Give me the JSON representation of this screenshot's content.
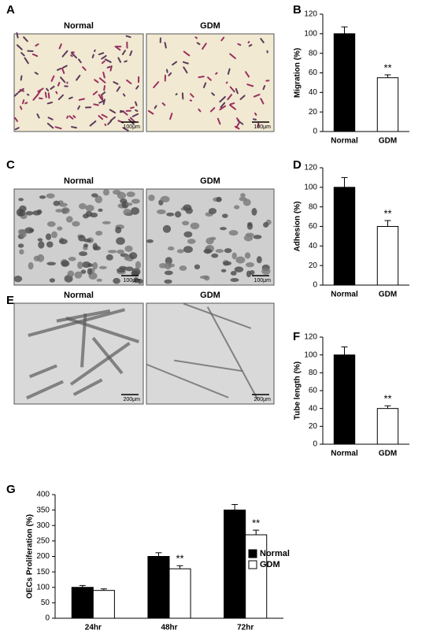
{
  "image_panels": [
    {
      "label": "A",
      "images": [
        {
          "title": "Normal",
          "scale": "100μm"
        },
        {
          "title": "GDM",
          "scale": "100μm"
        }
      ]
    },
    {
      "label": "C",
      "images": [
        {
          "title": "Normal",
          "scale": "100μm"
        },
        {
          "title": "GDM",
          "scale": "100μm"
        }
      ]
    },
    {
      "label": "E",
      "images": [
        {
          "title": "Normal",
          "scale": "200μm"
        },
        {
          "title": "GDM",
          "scale": "200μm"
        }
      ]
    }
  ],
  "chart_data": [
    {
      "type": "bar",
      "panel_label": "B",
      "y_label": "Migration (%)",
      "categories": [
        "Normal",
        "GDM"
      ],
      "values": [
        100,
        55
      ],
      "errors": [
        7,
        3
      ],
      "colors": [
        "#000000",
        "#ffffff"
      ],
      "significance": [
        null,
        "**"
      ],
      "ylim": [
        0,
        120
      ],
      "yticks": [
        0,
        20,
        40,
        60,
        80,
        100,
        120
      ]
    },
    {
      "type": "bar",
      "panel_label": "D",
      "y_label": "Adhesion (%)",
      "categories": [
        "Normal",
        "GDM"
      ],
      "values": [
        100,
        60
      ],
      "errors": [
        10,
        6
      ],
      "colors": [
        "#000000",
        "#ffffff"
      ],
      "significance": [
        null,
        "**"
      ],
      "ylim": [
        0,
        120
      ],
      "yticks": [
        0,
        20,
        40,
        60,
        80,
        100,
        120
      ]
    },
    {
      "type": "bar",
      "panel_label": "F",
      "y_label": "Tube length (%)",
      "categories": [
        "Normal",
        "GDM"
      ],
      "values": [
        100,
        40
      ],
      "errors": [
        9,
        3
      ],
      "colors": [
        "#000000",
        "#ffffff"
      ],
      "significance": [
        null,
        "**"
      ],
      "ylim": [
        0,
        120
      ],
      "yticks": [
        0,
        20,
        40,
        60,
        80,
        100,
        120
      ]
    },
    {
      "type": "grouped-bar",
      "panel_label": "G",
      "y_label": "OECs  Proliferation (%)",
      "categories": [
        "24hr",
        "48hr",
        "72hr"
      ],
      "series": [
        {
          "name": "Normal",
          "color": "#000000",
          "values": [
            100,
            200,
            350
          ],
          "errors": [
            6,
            12,
            18
          ],
          "significance": [
            null,
            null,
            null
          ]
        },
        {
          "name": "GDM",
          "color": "#ffffff",
          "values": [
            90,
            160,
            270
          ],
          "errors": [
            5,
            10,
            15
          ],
          "significance": [
            null,
            "**",
            "**"
          ]
        }
      ],
      "ylim": [
        0,
        400
      ],
      "yticks": [
        0,
        50,
        100,
        150,
        200,
        250,
        300,
        350,
        400
      ],
      "legend": "right"
    }
  ]
}
